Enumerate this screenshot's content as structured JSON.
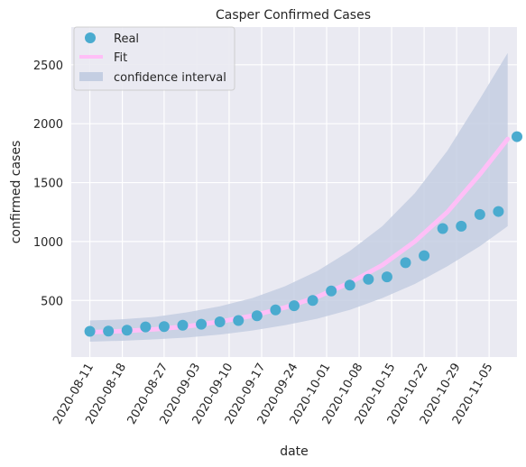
{
  "chart_data": {
    "type": "scatter",
    "title": "Casper Confirmed Cases",
    "xlabel": "date",
    "ylabel": "confirmed cases",
    "grid": true,
    "legend_position": "top-left",
    "xlim": [
      "2020-08-07",
      "2020-11-11"
    ],
    "ylim": [
      20,
      2820
    ],
    "xticks": [
      "2020-08-11",
      "2020-08-18",
      "2020-08-27",
      "2020-09-03",
      "2020-09-10",
      "2020-09-17",
      "2020-09-24",
      "2020-10-01",
      "2020-10-08",
      "2020-10-15",
      "2020-10-22",
      "2020-10-29",
      "2020-11-05"
    ],
    "yticks": [
      500,
      1000,
      1500,
      2000,
      2500
    ],
    "colors": {
      "background": "#eaeaf2",
      "real": "#4aabcf",
      "fit": "#ffbff7",
      "band": "#c4cee2"
    },
    "series": [
      {
        "name": "Real",
        "kind": "points",
        "x": [
          "2020-08-11",
          "2020-08-15",
          "2020-08-19",
          "2020-08-23",
          "2020-08-27",
          "2020-08-31",
          "2020-09-04",
          "2020-09-08",
          "2020-09-12",
          "2020-09-16",
          "2020-09-20",
          "2020-09-24",
          "2020-09-28",
          "2020-10-02",
          "2020-10-06",
          "2020-10-10",
          "2020-10-14",
          "2020-10-18",
          "2020-10-22",
          "2020-10-26",
          "2020-10-30",
          "2020-11-03",
          "2020-11-07",
          "2020-11-11"
        ],
        "y": [
          238,
          240,
          248,
          275,
          278,
          290,
          298,
          318,
          330,
          370,
          420,
          455,
          500,
          580,
          630,
          680,
          700,
          820,
          880,
          1110,
          1130,
          1230,
          1255,
          1890
        ]
      },
      {
        "name": "Fit",
        "kind": "line",
        "x": [
          "2020-08-11",
          "2020-08-18",
          "2020-08-25",
          "2020-09-01",
          "2020-09-08",
          "2020-09-15",
          "2020-09-22",
          "2020-09-29",
          "2020-10-06",
          "2020-10-13",
          "2020-10-20",
          "2020-10-27",
          "2020-11-03",
          "2020-11-09"
        ],
        "y": [
          230,
          240,
          255,
          280,
          320,
          370,
          440,
          530,
          650,
          800,
          1000,
          1250,
          1570,
          1870
        ]
      },
      {
        "name": "confidence interval",
        "kind": "band",
        "x": [
          "2020-08-11",
          "2020-08-18",
          "2020-08-25",
          "2020-09-01",
          "2020-09-08",
          "2020-09-15",
          "2020-09-22",
          "2020-09-29",
          "2020-10-06",
          "2020-10-13",
          "2020-10-20",
          "2020-10-27",
          "2020-11-03",
          "2020-11-09"
        ],
        "upper": [
          330,
          340,
          360,
          400,
          450,
          520,
          620,
          750,
          920,
          1130,
          1410,
          1770,
          2210,
          2600
        ],
        "lower": [
          150,
          158,
          170,
          185,
          210,
          245,
          290,
          345,
          420,
          520,
          640,
          790,
          960,
          1130
        ]
      }
    ]
  }
}
